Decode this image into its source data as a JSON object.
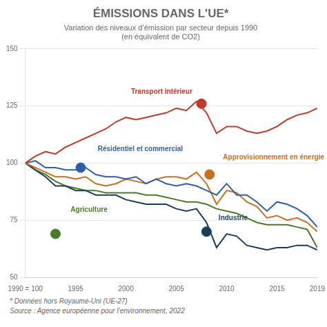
{
  "chart_data": {
    "type": "line",
    "title": "ÉMISSIONS DANS L'UE*",
    "subtitle": [
      "Variation des niveaux d’émission par secteur depuis 1990",
      "(en équivalent de CO2)"
    ],
    "footnote": "* Données hors Royaume-Uni (UE-27)",
    "source": "Source : Agence européenne pour l’environnement, 2022",
    "x": [
      1990,
      1991,
      1992,
      1993,
      1994,
      1995,
      1996,
      1997,
      1998,
      1999,
      2000,
      2001,
      2002,
      2003,
      2004,
      2005,
      2006,
      2007,
      2008,
      2009,
      2010,
      2011,
      2012,
      2013,
      2014,
      2015,
      2016,
      2017,
      2018,
      2019
    ],
    "series": [
      {
        "name": "Transport intérieur",
        "color": "#c0392b",
        "values": [
          100,
          103,
          105,
          104,
          107,
          109,
          111,
          113,
          115,
          118,
          120,
          119,
          120,
          121,
          122,
          124,
          123,
          127,
          122,
          113,
          116,
          116,
          114,
          113,
          114,
          116,
          119,
          121,
          122,
          124
        ],
        "label_x": 2000.5,
        "label_y": 131,
        "icon_x": 2007.5,
        "icon_y": 126
      },
      {
        "name": "Résidentiel et commercial",
        "color": "#2e5fa3",
        "values": [
          100,
          101,
          98,
          98,
          97,
          97,
          98,
          95,
          94,
          94,
          93,
          94,
          91,
          93,
          91,
          90,
          91,
          90,
          88,
          86,
          91,
          86,
          86,
          83,
          79,
          83,
          82,
          80,
          77,
          72
        ],
        "label_x": 1997.2,
        "label_y": 106,
        "icon_x": 1995.5,
        "icon_y": 98
      },
      {
        "name": "Approvisionnement en énergie",
        "color": "#c87020",
        "values": [
          100,
          98,
          96,
          94,
          94,
          93,
          94,
          91,
          90,
          91,
          93,
          92,
          91,
          93,
          94,
          94,
          93,
          96,
          91,
          82,
          88,
          87,
          83,
          81,
          76,
          77,
          75,
          76,
          74,
          70
        ],
        "label_x": 2010.2,
        "label_y": 102.5,
        "icon_x": 2008.3,
        "icon_y": 95
      },
      {
        "name": "Industrie",
        "color": "#1b3d5c",
        "values": [
          100,
          97,
          94,
          90,
          90,
          88,
          88,
          86,
          86,
          86,
          84,
          83,
          82,
          82,
          82,
          80,
          79,
          80,
          74,
          63,
          69,
          68,
          64,
          63,
          62,
          63,
          63,
          64,
          64,
          62
        ],
        "label_x": 2009.2,
        "label_y": 76,
        "icon_x": 2008.0,
        "icon_y": 70
      },
      {
        "name": "Agriculture",
        "color": "#4a7a28",
        "values": [
          100,
          97,
          95,
          92,
          90,
          89,
          88,
          88,
          87,
          87,
          87,
          87,
          86,
          86,
          85,
          84,
          83,
          83,
          82,
          80,
          79,
          78,
          76,
          74,
          73,
          73,
          73,
          72,
          71,
          63
        ],
        "label_x": 1994.5,
        "label_y": 79.5,
        "icon_x": 1993.0,
        "icon_y": 69
      }
    ],
    "xlim": [
      1990,
      2019
    ],
    "xticks": [
      {
        "value": 1990,
        "label": "1990 = 100"
      },
      1995,
      2000,
      2005,
      2010,
      2015,
      2019
    ],
    "ylim": [
      50,
      150
    ],
    "yticks": [
      50,
      75,
      100,
      125,
      150
    ],
    "grid": "y"
  }
}
